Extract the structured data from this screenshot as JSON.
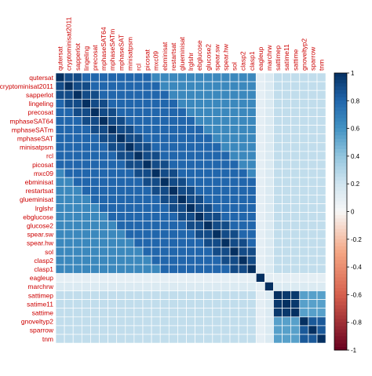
{
  "chart_data": {
    "type": "heatmap",
    "title": "",
    "variables": [
      "qutersat",
      "cryptominisat2011",
      "sapperlot",
      "lingeling",
      "precosat",
      "mphaseSAT64",
      "mphaseSATm",
      "mphaseSAT",
      "minisatpsm",
      "rcl",
      "picosat",
      "mxc09",
      "ebminisat",
      "restartsat",
      "glueminisat",
      "lrglshr",
      "ebglucose",
      "glucose2",
      "spear.sw",
      "spear.hw",
      "sol",
      "clasp2",
      "clasp1",
      "eagleup",
      "marchrw",
      "sattimep",
      "satime11",
      "sattime",
      "gnoveltyp2",
      "sparrow",
      "tnm"
    ],
    "groups": {
      "cdcl": [
        "qutersat",
        "cryptominisat2011",
        "sapperlot",
        "lingeling",
        "precosat",
        "mphaseSAT64",
        "mphaseSATm",
        "mphaseSAT",
        "minisatpsm",
        "rcl",
        "picosat",
        "mxc09",
        "ebminisat",
        "restartsat",
        "glueminisat",
        "lrglshr",
        "ebglucose",
        "glucose2",
        "spear.sw",
        "spear.hw",
        "sol",
        "clasp2",
        "clasp1"
      ],
      "local_search": [
        "eagleup",
        "marchrw",
        "sattimep",
        "satime11",
        "sattime",
        "gnoveltyp2",
        "sparrow",
        "tnm"
      ]
    },
    "correlation_estimates": {
      "diagonal": 1.0,
      "cdcl_block_adjacent": 0.9,
      "cdcl_block_typical": 0.8,
      "cdcl_block_distant": 0.65,
      "cdcl_vs_local_search": 0.25,
      "eagleup_vs_others": 0.1,
      "marchrw_vs_others": 0.15,
      "sattime_family": 0.97,
      "gnoveltyp2_sparrow_tnm": 0.85,
      "sattime_vs_gnovelty_group": 0.55
    },
    "colorbar": {
      "min": -1,
      "max": 1,
      "ticks": [
        "1",
        "0.8",
        "0.6",
        "0.4",
        "0.2",
        "0",
        "-0.2",
        "-0.4",
        "-0.6",
        "-0.8",
        "-1"
      ],
      "colors": {
        "negative": "#67001f",
        "mid": "#ffffff",
        "positive": "#053061"
      }
    },
    "label_color": "#cc0000"
  }
}
